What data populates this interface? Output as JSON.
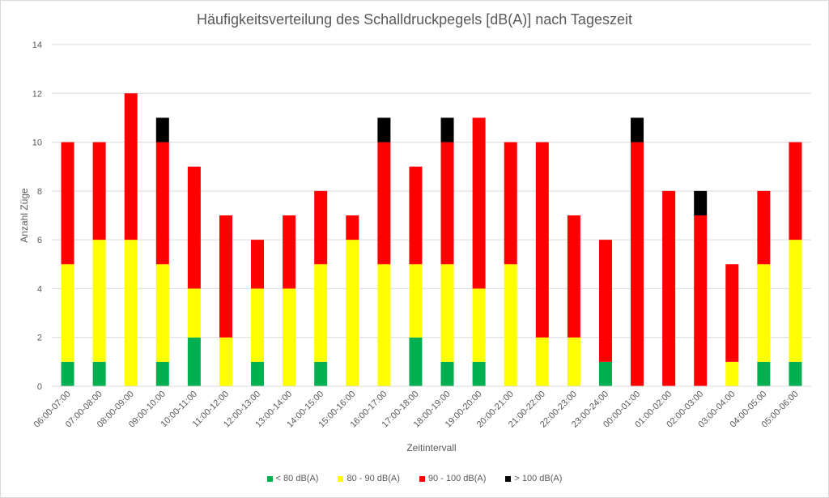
{
  "chart_data": {
    "type": "bar",
    "stacked": true,
    "title": "Häufigkeitsverteilung des Schalldruckpegels [dB(A)] nach Tageszeit",
    "xlabel": "Zeitintervall",
    "ylabel": "Anzahl Züge",
    "ylim": [
      0,
      14
    ],
    "yticks": [
      0,
      2,
      4,
      6,
      8,
      10,
      12,
      14
    ],
    "grid": true,
    "legend_position": "bottom",
    "categories": [
      "06:00-07:00",
      "07:00-08:00",
      "08:00-09:00",
      "09:00-10:00",
      "10:00-11:00",
      "11:00-12:00",
      "12:00-13:00",
      "13:00-14:00",
      "14:00-15:00",
      "15:00-16:00",
      "16:00-17:00",
      "17:00-18:00",
      "18:00-19:00",
      "19:00-20:00",
      "20:00-21:00",
      "21:00-22:00",
      "22:00-23:00",
      "23:00-24:00",
      "00:00-01:00",
      "01:00-02:00",
      "02:00-03:00",
      "03:00-04:00",
      "04:00-05:00",
      "05:00-06:00"
    ],
    "series": [
      {
        "name": "< 80 dB(A)",
        "color": "#00b050",
        "values": [
          1,
          1,
          0,
          1,
          2,
          0,
          1,
          0,
          1,
          0,
          0,
          2,
          1,
          1,
          0,
          0,
          0,
          1,
          0,
          0,
          0,
          0,
          1,
          1
        ]
      },
      {
        "name": "80 - 90 dB(A)",
        "color": "#ffff00",
        "values": [
          4,
          5,
          6,
          4,
          2,
          2,
          3,
          4,
          4,
          6,
          5,
          3,
          4,
          3,
          5,
          2,
          2,
          0,
          0,
          0,
          0,
          1,
          4,
          5
        ]
      },
      {
        "name": "90 - 100 dB(A)",
        "color": "#ff0000",
        "values": [
          5,
          4,
          6,
          5,
          5,
          5,
          2,
          3,
          3,
          1,
          5,
          4,
          5,
          7,
          5,
          8,
          5,
          5,
          10,
          8,
          7,
          4,
          3,
          4
        ]
      },
      {
        "name": "> 100 dB(A)",
        "color": "#000000",
        "values": [
          0,
          0,
          0,
          1,
          0,
          0,
          0,
          0,
          0,
          0,
          1,
          0,
          1,
          0,
          0,
          0,
          0,
          0,
          1,
          0,
          1,
          0,
          0,
          0
        ]
      }
    ]
  }
}
